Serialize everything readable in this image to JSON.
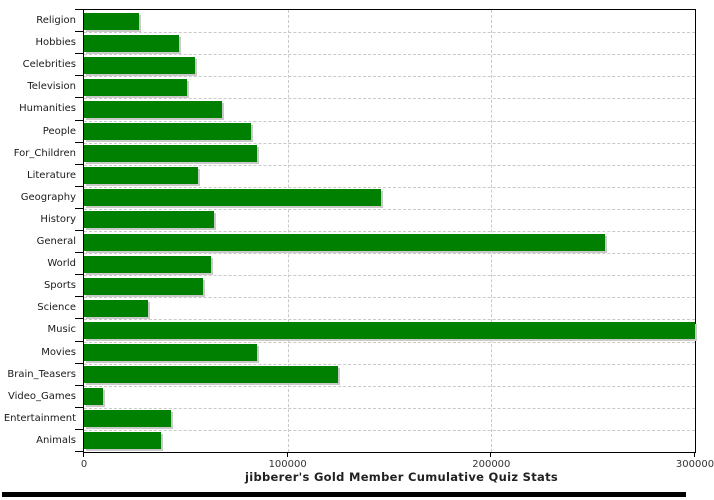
{
  "title": "jibberer's Gold Member Cumulative Quiz Stats",
  "colors": {
    "bar": "#008000",
    "bar_shadow": "#c9c9c9",
    "axis": "#000000",
    "grid": "#c9c9c9",
    "label_text": "#1a1a1a",
    "title_text": "#222222"
  },
  "chart_data": {
    "type": "bar",
    "orientation": "horizontal",
    "title": "jibberer's Gold Member Cumulative Quiz Stats",
    "categories": [
      "Religion",
      "Hobbies",
      "Celebrities",
      "Television",
      "Humanities",
      "People",
      "For_Children",
      "Literature",
      "Geography",
      "History",
      "General",
      "World",
      "Sports",
      "Science",
      "Music",
      "Movies",
      "Brain_Teasers",
      "Video_Games",
      "Entertainment",
      "Animals"
    ],
    "values": [
      27000,
      46500,
      54500,
      50500,
      68000,
      82000,
      85000,
      56000,
      146000,
      64000,
      256000,
      62500,
      58500,
      31500,
      300000,
      85000,
      124500,
      9500,
      42500,
      38000
    ],
    "xlim": [
      0,
      300000
    ],
    "x_ticks": [
      0,
      100000,
      200000,
      300000
    ],
    "x_tick_labels": [
      "0",
      "100000",
      "200000",
      "300000"
    ],
    "grid": "dashed",
    "legend": "none"
  }
}
